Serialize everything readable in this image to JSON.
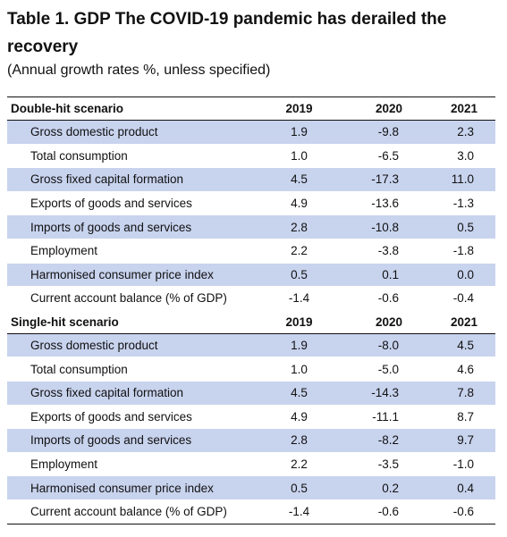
{
  "title": "Table 1. GDP  The COVID-19 pandemic has derailed the recovery",
  "subtitle": "(Annual growth rates %, unless specified)",
  "table": {
    "sections": [
      {
        "name": "Double-hit scenario",
        "years": [
          "2019",
          "2020",
          "2021"
        ],
        "rows": [
          {
            "label": "Gross domestic product",
            "values": [
              "1.9",
              "-9.8",
              "2.3"
            ]
          },
          {
            "label": "Total consumption",
            "values": [
              "1.0",
              "-6.5",
              "3.0"
            ]
          },
          {
            "label": "Gross fixed capital formation",
            "values": [
              "4.5",
              "-17.3",
              "11.0"
            ]
          },
          {
            "label": "Exports of goods and services",
            "values": [
              "4.9",
              "-13.6",
              "-1.3"
            ]
          },
          {
            "label": "Imports of goods and services",
            "values": [
              "2.8",
              "-10.8",
              "0.5"
            ]
          },
          {
            "label": "Employment",
            "values": [
              "2.2",
              "-3.8",
              "-1.8"
            ]
          },
          {
            "label": "Harmonised consumer price index",
            "values": [
              "0.5",
              "0.1",
              "0.0"
            ]
          },
          {
            "label": "Current account balance (% of GDP)",
            "values": [
              "-1.4",
              "-0.6",
              "-0.4"
            ]
          }
        ]
      },
      {
        "name": "Single-hit scenario",
        "years": [
          "2019",
          "2020",
          "2021"
        ],
        "rows": [
          {
            "label": "Gross domestic product",
            "values": [
              "1.9",
              "-8.0",
              "4.5"
            ]
          },
          {
            "label": "Total consumption",
            "values": [
              "1.0",
              "-5.0",
              "4.6"
            ]
          },
          {
            "label": "Gross fixed capital formation",
            "values": [
              "4.5",
              "-14.3",
              "7.8"
            ]
          },
          {
            "label": "Exports of goods and services",
            "values": [
              "4.9",
              "-11.1",
              "8.7"
            ]
          },
          {
            "label": "Imports of goods and services",
            "values": [
              "2.8",
              "-8.2",
              "9.7"
            ]
          },
          {
            "label": "Employment",
            "values": [
              "2.2",
              "-3.5",
              "-1.0"
            ]
          },
          {
            "label": "Harmonised consumer price index",
            "values": [
              "0.5",
              "0.2",
              "0.4"
            ]
          },
          {
            "label": "Current account balance (% of GDP)",
            "values": [
              "-1.4",
              "-0.6",
              "-0.6"
            ]
          }
        ]
      }
    ]
  },
  "colors": {
    "row_shade": "#c8d3ee",
    "rule": "#111111"
  }
}
